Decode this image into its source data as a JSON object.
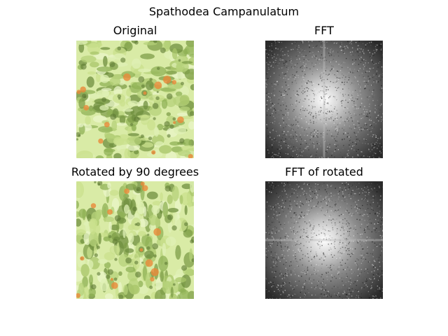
{
  "figure": {
    "title": "Spathodea Campanulatum"
  },
  "panels": [
    {
      "title": "Original",
      "content": "plant-photo"
    },
    {
      "title": "FFT",
      "content": "fft-magnitude-spectrum"
    },
    {
      "title": "Rotated by 90 degrees",
      "content": "plant-photo-rotated"
    },
    {
      "title": "FFT of rotated",
      "content": "fft-magnitude-spectrum-rotated"
    }
  ],
  "colors": {
    "background": "#ffffff",
    "foliage_light": "#d9eba6",
    "foliage_dark": "#5e7a34",
    "flower": "#e88a3a",
    "fft_center": "#ffffff",
    "fft_edge": "#2a2a2a"
  }
}
